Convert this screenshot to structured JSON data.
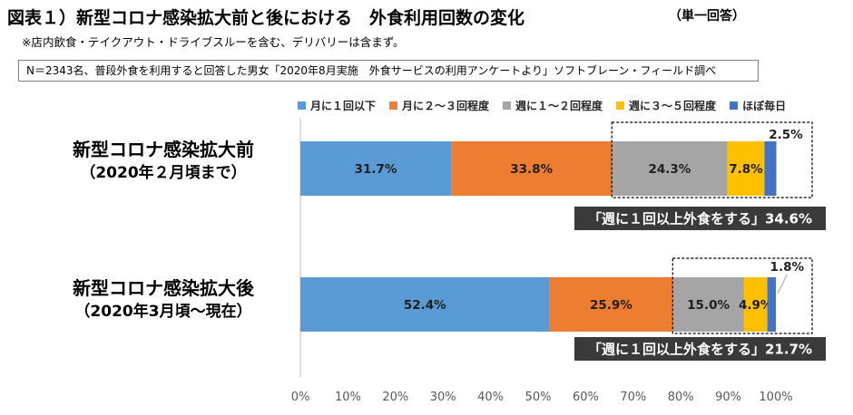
{
  "figure": {
    "answer_type": "（単一回答）",
    "note": "※店内飲食・テイクアウト・ドライブスルーを含む、デリバリーは含まず。",
    "source": "N＝2343名、普段外食を利用すると回答した男女「2020年8月実施　外食サービスの利用アンケートより」ソフトブレーン・フィールド調べ"
  },
  "chart_data": {
    "type": "bar",
    "orientation": "horizontal",
    "stacked": true,
    "title": "図表１）新型コロナ感染拡大前と後における　外食利用回数の変化",
    "categories": [
      "新型コロナ感染拡大前",
      "新型コロナ感染拡大後"
    ],
    "category_sublabels": [
      "（2020年２月頃まで）",
      "（2020年3月頃～現在）"
    ],
    "series": [
      {
        "name": "月に１回以下",
        "values": [
          31.7,
          52.4
        ],
        "color": "#5B9BD5"
      },
      {
        "name": "月に２～３回程度",
        "values": [
          33.8,
          25.9
        ],
        "color": "#ED7D31"
      },
      {
        "name": "週に１～２回程度",
        "values": [
          24.3,
          15.0
        ],
        "color": "#A5A5A5"
      },
      {
        "name": "週に３～５回程度",
        "values": [
          7.8,
          4.9
        ],
        "color": "#FFC000"
      },
      {
        "name": "ほぼ毎日",
        "values": [
          2.5,
          1.8
        ],
        "color": "#4472C4"
      }
    ],
    "data_labels": [
      [
        "31.7%",
        "33.8%",
        "24.3%",
        "7.8%",
        "2.5%"
      ],
      [
        "52.4%",
        "25.9%",
        "15.0%",
        "4.9%",
        "1.8%"
      ]
    ],
    "leader_lines": [
      {
        "category": 1,
        "series": 4
      }
    ],
    "xlim": [
      0,
      100
    ],
    "x_ticks": [
      0,
      10,
      20,
      30,
      40,
      50,
      60,
      70,
      80,
      90,
      100
    ],
    "x_tick_labels": [
      "0%",
      "10%",
      "20%",
      "30%",
      "40%",
      "50%",
      "60%",
      "70%",
      "80%",
      "90%",
      "100%"
    ],
    "grid": false,
    "legend_position": "top",
    "annotations": [
      {
        "text": "「週に１回以上外食をする」34.6%",
        "category": 0,
        "series": [
          2,
          3,
          4
        ]
      },
      {
        "text": "「週に１回以上外食をする」21.7%",
        "category": 1,
        "series": [
          2,
          3,
          4
        ]
      }
    ]
  }
}
